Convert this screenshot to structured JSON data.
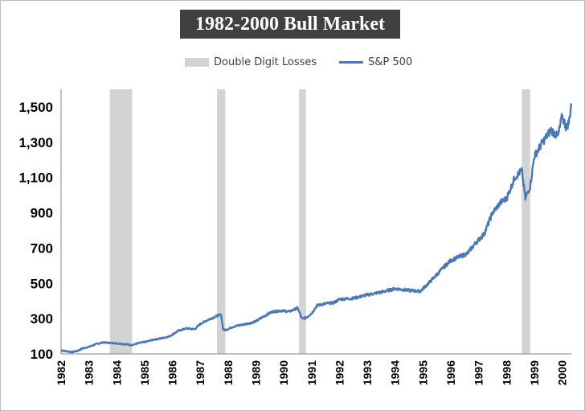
{
  "chart_data": {
    "type": "line",
    "title": "1982-2000 Bull Market",
    "xlabel": "",
    "ylabel": "",
    "xlim": [
      1982.0,
      2000.33
    ],
    "ylim": [
      100,
      1600
    ],
    "yticks": [
      100,
      300,
      500,
      700,
      900,
      1100,
      1300,
      1500
    ],
    "ytick_labels": [
      "100",
      "300",
      "500",
      "700",
      "900",
      "1,100",
      "1,300",
      "1,500"
    ],
    "xticks": [
      1982,
      1983,
      1984,
      1985,
      1986,
      1987,
      1988,
      1989,
      1990,
      1991,
      1992,
      1993,
      1994,
      1995,
      1996,
      1997,
      1998,
      1999,
      2000
    ],
    "xtick_labels": [
      "1982",
      "1983",
      "1984",
      "1985",
      "1986",
      "1987",
      "1988",
      "1989",
      "1990",
      "1991",
      "1992",
      "1993",
      "1994",
      "1995",
      "1996",
      "1997",
      "1998",
      "1999",
      "2000"
    ],
    "grid": false,
    "legend_position": "top-center",
    "shaded_regions": {
      "name": "Double Digit Losses",
      "color": "#d3d3d3",
      "ranges": [
        [
          1983.75,
          1984.55
        ],
        [
          1987.6,
          1987.9
        ],
        [
          1990.55,
          1990.8
        ],
        [
          1998.55,
          1998.85
        ]
      ]
    },
    "series": [
      {
        "name": "S&P 500",
        "color": "#4a78b5",
        "x": [
          1982.0,
          1982.2,
          1982.4,
          1982.6,
          1982.75,
          1983.0,
          1983.25,
          1983.5,
          1983.8,
          1984.0,
          1984.3,
          1984.55,
          1984.8,
          1985.0,
          1985.3,
          1985.6,
          1985.9,
          1986.2,
          1986.5,
          1986.8,
          1987.0,
          1987.3,
          1987.6,
          1987.75,
          1987.82,
          1987.9,
          1988.2,
          1988.5,
          1988.8,
          1989.0,
          1989.3,
          1989.6,
          1989.9,
          1990.2,
          1990.5,
          1990.65,
          1990.8,
          1991.0,
          1991.2,
          1991.5,
          1991.8,
          1992.0,
          1992.5,
          1993.0,
          1993.5,
          1994.0,
          1994.5,
          1994.9,
          1995.2,
          1995.5,
          1995.8,
          1996.0,
          1996.3,
          1996.6,
          1996.9,
          1997.2,
          1997.5,
          1997.8,
          1998.0,
          1998.3,
          1998.55,
          1998.68,
          1998.85,
          1999.0,
          1999.3,
          1999.6,
          1999.85,
          2000.0,
          2000.15,
          2000.25,
          2000.33
        ],
        "values": [
          120,
          115,
          110,
          118,
          130,
          140,
          155,
          165,
          162,
          160,
          155,
          150,
          162,
          167,
          180,
          188,
          200,
          230,
          245,
          240,
          270,
          295,
          315,
          322,
          240,
          235,
          255,
          265,
          275,
          285,
          315,
          340,
          345,
          340,
          360,
          300,
          305,
          330,
          375,
          385,
          390,
          410,
          415,
          435,
          450,
          470,
          460,
          455,
          500,
          550,
          600,
          630,
          650,
          670,
          730,
          780,
          900,
          960,
          980,
          1100,
          1140,
          980,
          1050,
          1220,
          1300,
          1370,
          1330,
          1450,
          1380,
          1420,
          1520
        ]
      }
    ]
  }
}
